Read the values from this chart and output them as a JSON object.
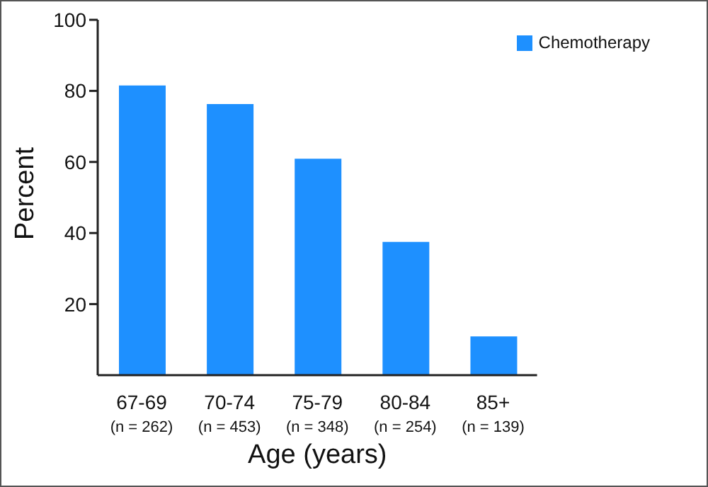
{
  "chart_data": {
    "type": "bar",
    "xlabel": "Age (years)",
    "ylabel": "Percent",
    "categories": [
      "67-69\n(n = 262)",
      "70-74\n(n = 453)",
      "75-79\n(n = 348)",
      "80-84\n(n = 254)",
      "85+\n(n = 139)"
    ],
    "series": [
      {
        "name": "Chemotherapy",
        "color": "#1e90ff",
        "values": [
          81.5,
          76.3,
          60.9,
          37.5,
          10.9
        ]
      }
    ],
    "ylim": [
      0,
      100
    ],
    "yticks": [
      20,
      40,
      60,
      80,
      100
    ],
    "grid": false,
    "legend": "top right"
  }
}
